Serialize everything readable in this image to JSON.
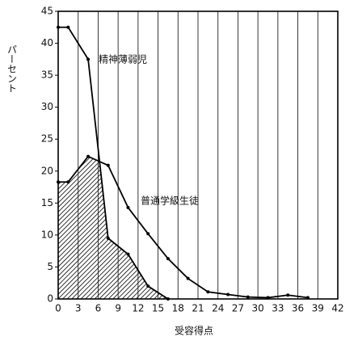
{
  "chart_data": {
    "type": "line",
    "x_label": "受容得点",
    "y_label": "パーセント",
    "xlim": [
      0,
      42
    ],
    "xticks": [
      0,
      3,
      6,
      9,
      12,
      15,
      18,
      21,
      24,
      27,
      30,
      33,
      36,
      39,
      42
    ],
    "ylim": [
      0,
      45
    ],
    "yticks": [
      0,
      5,
      10,
      15,
      20,
      25,
      30,
      35,
      40,
      45
    ],
    "grid": "x",
    "hatch_below": "overlap",
    "series": [
      {
        "name": "精神薄弱児",
        "color": "#000000",
        "x": [
          0,
          1.5,
          4.5,
          7.5,
          10.5,
          13.5,
          16.5
        ],
        "values": [
          42.5,
          42.5,
          37.5,
          9.5,
          7,
          2,
          0
        ]
      },
      {
        "name": "普通学級生徒",
        "color": "#000000",
        "x": [
          0,
          1.5,
          4.5,
          7.5,
          10.5,
          13.5,
          16.5,
          19.5,
          22.5,
          25.5,
          28.5,
          31.5,
          34.5,
          37.5
        ],
        "values": [
          18.3,
          18.3,
          22.3,
          20.9,
          14.3,
          10.2,
          6.3,
          3.2,
          1.1,
          0.7,
          0.3,
          0.2,
          0.6,
          0.2
        ]
      }
    ]
  }
}
